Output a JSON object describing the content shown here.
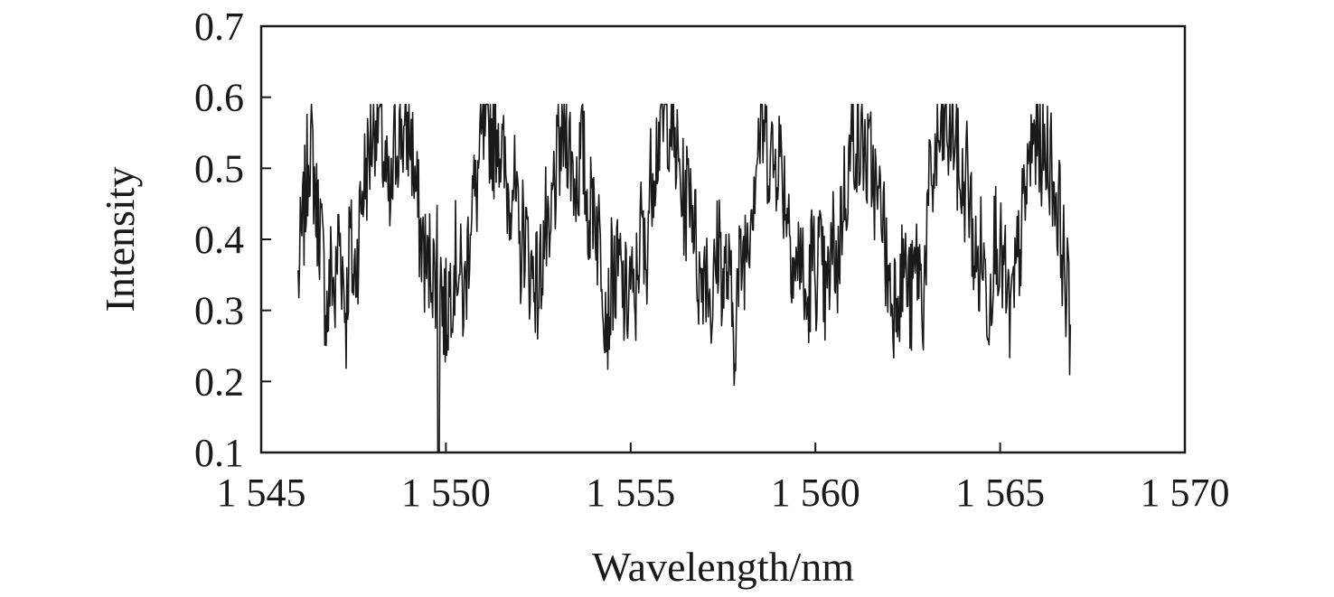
{
  "chart_data": {
    "type": "line",
    "title": "",
    "xlabel": "Wavelength/nm",
    "ylabel": "Intensity",
    "xlim": [
      1545,
      1570
    ],
    "ylim": [
      0.1,
      0.7
    ],
    "x_ticks": [
      1545,
      1550,
      1555,
      1560,
      1565,
      1570
    ],
    "x_tick_labels": [
      "1 545",
      "1 550",
      "1 555",
      "1 560",
      "1 565",
      "1 570"
    ],
    "y_ticks": [
      0.1,
      0.2,
      0.3,
      0.4,
      0.5,
      0.6,
      0.7
    ],
    "y_tick_labels": [
      "0.1",
      "0.2",
      "0.3",
      "0.4",
      "0.5",
      "0.6",
      "0.7"
    ],
    "grid": false,
    "legend": "none",
    "line_color": "#1a1a1a",
    "series": [
      {
        "x_start": 1546.0,
        "x_step": 0.1,
        "values": [
          0.34,
          0.4,
          0.46,
          0.54,
          0.51,
          0.44,
          0.42,
          0.34,
          0.29,
          0.37,
          0.31,
          0.42,
          0.36,
          0.29,
          0.41,
          0.34,
          0.38,
          0.45,
          0.49,
          0.51,
          0.55,
          0.58,
          0.57,
          0.52,
          0.47,
          0.43,
          0.52,
          0.55,
          0.56,
          0.53,
          0.56,
          0.52,
          0.46,
          0.41,
          0.38,
          0.35,
          0.38,
          0.34,
          0.43,
          0.31,
          0.29,
          0.33,
          0.36,
          0.38,
          0.34,
          0.31,
          0.39,
          0.47,
          0.45,
          0.51,
          0.54,
          0.55,
          0.56,
          0.54,
          0.57,
          0.52,
          0.49,
          0.46,
          0.5,
          0.44,
          0.37,
          0.42,
          0.39,
          0.35,
          0.36,
          0.32,
          0.38,
          0.42,
          0.35,
          0.47,
          0.49,
          0.53,
          0.56,
          0.55,
          0.51,
          0.48,
          0.5,
          0.53,
          0.46,
          0.43,
          0.47,
          0.41,
          0.39,
          0.32,
          0.29,
          0.36,
          0.34,
          0.36,
          0.32,
          0.31,
          0.35,
          0.28,
          0.38,
          0.42,
          0.35,
          0.46,
          0.51,
          0.53,
          0.56,
          0.56,
          0.58,
          0.57,
          0.53,
          0.5,
          0.46,
          0.45,
          0.49,
          0.44,
          0.37,
          0.33,
          0.38,
          0.35,
          0.3,
          0.36,
          0.41,
          0.33,
          0.36,
          0.32,
          0.27,
          0.33,
          0.37,
          0.39,
          0.43,
          0.47,
          0.52,
          0.55,
          0.56,
          0.53,
          0.52,
          0.5,
          0.54,
          0.49,
          0.46,
          0.43,
          0.37,
          0.35,
          0.4,
          0.31,
          0.3,
          0.38,
          0.35,
          0.38,
          0.34,
          0.31,
          0.36,
          0.4,
          0.35,
          0.44,
          0.47,
          0.5,
          0.54,
          0.55,
          0.52,
          0.54,
          0.5,
          0.51,
          0.48,
          0.43,
          0.47,
          0.37,
          0.34,
          0.31,
          0.35,
          0.33,
          0.37,
          0.33,
          0.31,
          0.36,
          0.37,
          0.3,
          0.4,
          0.47,
          0.49,
          0.53,
          0.54,
          0.56,
          0.54,
          0.57,
          0.53,
          0.49,
          0.46,
          0.5,
          0.44,
          0.38,
          0.35,
          0.39,
          0.34,
          0.31,
          0.38,
          0.42,
          0.37,
          0.36,
          0.3,
          0.29,
          0.33,
          0.38,
          0.42,
          0.47,
          0.51,
          0.54,
          0.56,
          0.53,
          0.51,
          0.53,
          0.5,
          0.46,
          0.44,
          0.38,
          0.33,
          0.28
        ]
      }
    ],
    "dip": {
      "x": 1549.8,
      "value": 0.1
    }
  }
}
